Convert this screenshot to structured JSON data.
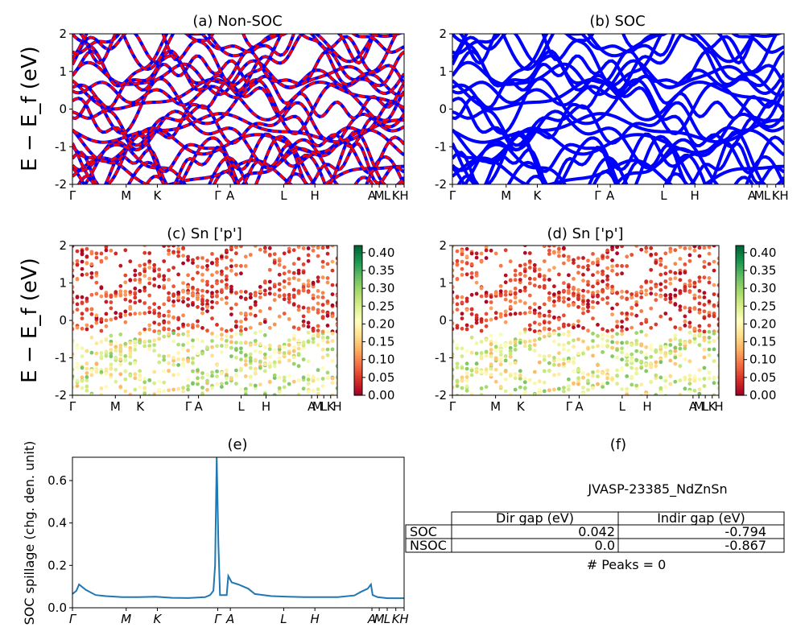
{
  "figure": {
    "energy_axis_label": "E − E_f (eV)",
    "energy_axis_label_sub": "f",
    "kpath_labels": [
      "Γ",
      "M",
      "K",
      "Γ",
      "A",
      "L",
      "H",
      "A",
      "M",
      "L",
      "K",
      "H"
    ],
    "kpath_positions": [
      0.0,
      0.162,
      0.256,
      0.438,
      0.476,
      0.637,
      0.731,
      0.903,
      0.925,
      0.949,
      0.975,
      1.0
    ]
  },
  "chart_data": [
    {
      "id": "a",
      "type": "line",
      "title": "(a) Non-SOC",
      "ylim": [
        -2,
        2
      ],
      "yticks": [
        -2,
        -1,
        0,
        1,
        2
      ],
      "series": [
        {
          "color": "#0000ff",
          "style": "solid"
        },
        {
          "color": "#ff0000",
          "style": "dashed"
        }
      ]
    },
    {
      "id": "b",
      "type": "line",
      "title": "(b) SOC",
      "ylim": [
        -2,
        2
      ],
      "yticks": [
        -2,
        -1,
        0,
        1,
        2
      ],
      "series": [
        {
          "color": "#0000ff",
          "style": "solid"
        }
      ]
    },
    {
      "id": "c",
      "type": "scatter",
      "title": "(c)  Sn ['p']",
      "ylim": [
        -2,
        2
      ],
      "yticks": [
        -2,
        -1,
        0,
        1,
        2
      ],
      "colorbar": {
        "min": 0.0,
        "max": 0.42,
        "ticks": [
          "0.00",
          "0.05",
          "0.10",
          "0.15",
          "0.20",
          "0.25",
          "0.30",
          "0.35",
          "0.40"
        ],
        "colormap": "RdYlGn"
      }
    },
    {
      "id": "d",
      "type": "scatter",
      "title": "(d) Sn ['p']",
      "ylim": [
        -2,
        2
      ],
      "yticks": [
        -2,
        -1,
        0,
        1,
        2
      ],
      "colorbar": {
        "min": 0.0,
        "max": 0.42,
        "ticks": [
          "0.00",
          "0.05",
          "0.10",
          "0.15",
          "0.20",
          "0.25",
          "0.30",
          "0.35",
          "0.40"
        ],
        "colormap": "RdYlGn"
      }
    },
    {
      "id": "e",
      "type": "line",
      "title": "(e)",
      "ylabel": "SOC spillage (chg. den. unit)",
      "ylim": [
        0,
        0.71
      ],
      "yticks": [
        "0.0",
        "0.2",
        "0.4",
        "0.6"
      ],
      "color": "#1f77b4",
      "x": [
        0.0,
        0.012,
        0.02,
        0.04,
        0.07,
        0.1,
        0.15,
        0.2,
        0.25,
        0.3,
        0.35,
        0.4,
        0.415,
        0.425,
        0.43,
        0.435,
        0.44,
        0.445,
        0.465,
        0.47,
        0.48,
        0.5,
        0.53,
        0.55,
        0.6,
        0.65,
        0.7,
        0.75,
        0.8,
        0.85,
        0.87,
        0.89,
        0.9,
        0.905,
        0.92,
        0.95,
        1.0
      ],
      "y": [
        0.065,
        0.08,
        0.11,
        0.085,
        0.06,
        0.055,
        0.05,
        0.05,
        0.052,
        0.047,
        0.046,
        0.05,
        0.06,
        0.08,
        0.2,
        0.71,
        0.3,
        0.06,
        0.06,
        0.15,
        0.12,
        0.11,
        0.09,
        0.065,
        0.055,
        0.052,
        0.05,
        0.05,
        0.05,
        0.058,
        0.075,
        0.09,
        0.11,
        0.06,
        0.05,
        0.045,
        0.045
      ]
    },
    {
      "id": "f",
      "type": "table",
      "title": "(f)",
      "subtitle": "JVASP-23385_NdZnSn",
      "columns": [
        "Dir gap (eV)",
        "Indir gap (eV)"
      ],
      "rows": [
        {
          "label": "SOC",
          "values": [
            "0.042",
            "-0.794"
          ]
        },
        {
          "label": "NSOC",
          "values": [
            "0.0",
            "-0.867"
          ]
        }
      ],
      "footer": "# Peaks = 0"
    }
  ]
}
